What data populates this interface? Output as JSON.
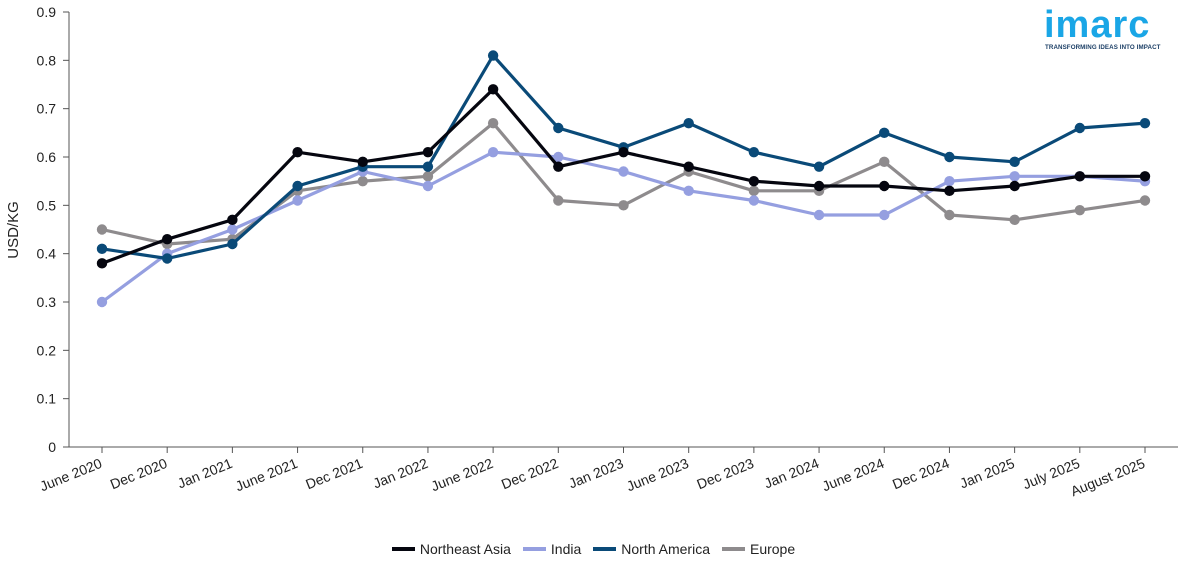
{
  "brand": {
    "logo_text": "imarc",
    "tagline": "TRANSFORMING IDEAS INTO IMPACT"
  },
  "chart_data": {
    "type": "line",
    "ylabel": "USD/KG",
    "xlabel": "",
    "ylim": [
      0,
      0.9
    ],
    "yticks": [
      "0",
      "0.1",
      "0.2",
      "0.3",
      "0.4",
      "0.5",
      "0.6",
      "0.7",
      "0.8",
      "0.9"
    ],
    "categories": [
      "June 2020",
      "Dec 2020",
      "Jan 2021",
      "June 2021",
      "Dec 2021",
      "Jan 2022",
      "June 2022",
      "Dec 2022",
      "Jan 2023",
      "June 2023",
      "Dec 2023",
      "Jan 2024",
      "June 2024",
      "Dec 2024",
      "Jan 2025",
      "July 2025",
      "August 2025"
    ],
    "grid": false,
    "legend_position": "bottom-center",
    "series": [
      {
        "name": "Europe",
        "color": "#8e8b8d",
        "values": [
          0.45,
          0.42,
          0.43,
          0.53,
          0.55,
          0.56,
          0.67,
          0.51,
          0.5,
          0.57,
          0.53,
          0.53,
          0.59,
          0.48,
          0.47,
          0.49,
          0.51
        ]
      },
      {
        "name": "India",
        "color": "#959fe0",
        "values": [
          0.3,
          0.4,
          0.45,
          0.51,
          0.57,
          0.54,
          0.61,
          0.6,
          0.57,
          0.53,
          0.51,
          0.48,
          0.48,
          0.55,
          0.56,
          0.56,
          0.55
        ]
      },
      {
        "name": "North America",
        "color": "#0a4a78",
        "values": [
          0.41,
          0.39,
          0.42,
          0.54,
          0.58,
          0.58,
          0.81,
          0.66,
          0.62,
          0.67,
          0.61,
          0.58,
          0.65,
          0.6,
          0.59,
          0.66,
          0.67
        ]
      },
      {
        "name": "Northeast Asia",
        "color": "#05060f",
        "values": [
          0.38,
          0.43,
          0.47,
          0.61,
          0.59,
          0.61,
          0.74,
          0.58,
          0.61,
          0.58,
          0.55,
          0.54,
          0.54,
          0.53,
          0.54,
          0.56,
          0.56
        ]
      }
    ],
    "legend": [
      "Northeast Asia",
      "India",
      "North America",
      "Europe"
    ]
  }
}
